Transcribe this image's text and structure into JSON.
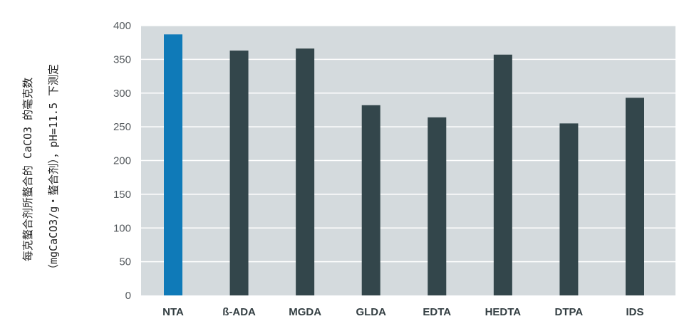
{
  "chart_data": {
    "type": "bar",
    "categories": [
      "NTA",
      "ß-ADA",
      "MGDA",
      "GLDA",
      "EDTA",
      "HEDTA",
      "DTPA",
      "IDS"
    ],
    "values": [
      387,
      363,
      366,
      282,
      264,
      357,
      255,
      293
    ],
    "title": "",
    "xlabel": "",
    "ylabel_lines": [
      "每克螯合剂所螯合的 CaCO3 的毫克数",
      "（mgCaCO3/g・螯合剂），pH=11.5 下测定"
    ],
    "ylim": [
      0,
      400
    ],
    "yticks": [
      0,
      50,
      100,
      150,
      200,
      250,
      300,
      350,
      400
    ],
    "grid": true,
    "colors": {
      "plot_background": "#d4dadd",
      "gridline": "#ffffff",
      "bar": "#33464b",
      "highlight_bar": "#0f7ab8",
      "highlight_category": "NTA"
    }
  }
}
